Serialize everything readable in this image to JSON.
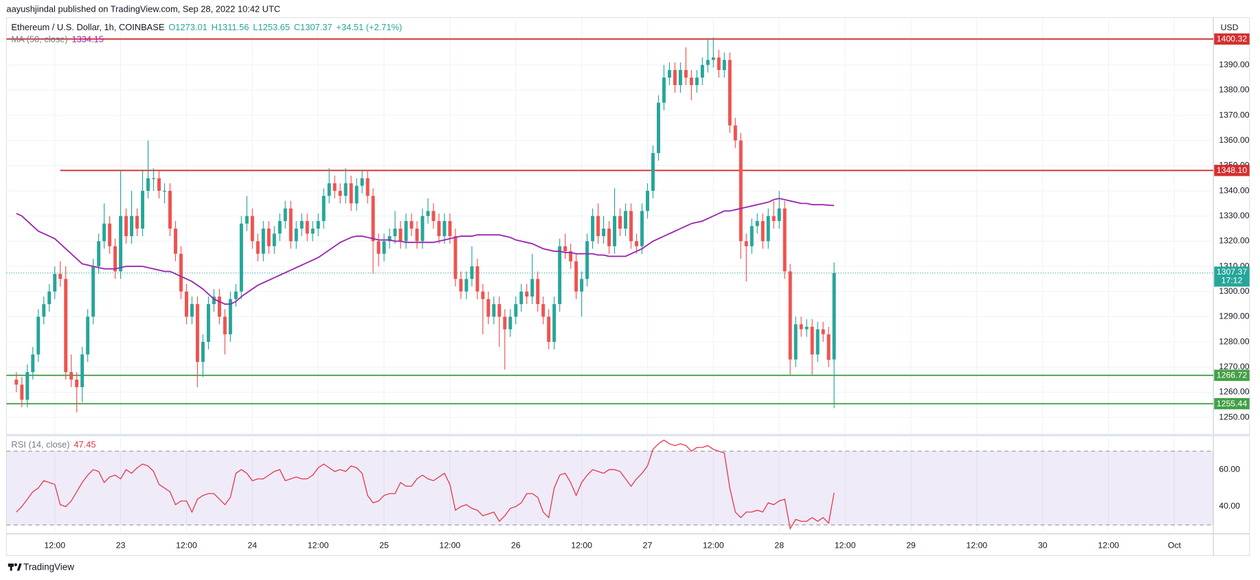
{
  "header": "aayushjindal published on TradingView.com, Sep 28, 2022 10:42 UTC",
  "footer": "TradingView",
  "chart_data": [
    {
      "type": "candlestick",
      "title": "Ethereum / U.S. Dollar, 1h, COINBASE",
      "quote": [
        "O1273.01",
        "H1311.56",
        "L1253.65",
        "C1307.37",
        "+34.51 (+2.71%)"
      ],
      "currency": "USD",
      "countdown": "17:12",
      "up_color": "#26a69a",
      "down_color": "#ef5350",
      "x": [
        5,
        6,
        7,
        8,
        9,
        10,
        11,
        12,
        13,
        14,
        15,
        16,
        17,
        18,
        19,
        20,
        21,
        22,
        23,
        24,
        25,
        26,
        27,
        28,
        29,
        30,
        31,
        32,
        33,
        34,
        35,
        36,
        37,
        38,
        39,
        40,
        41,
        42,
        43,
        44,
        45,
        46,
        47,
        48,
        49,
        50,
        51,
        52,
        53,
        54,
        55,
        56,
        57,
        58,
        59,
        60,
        61,
        62,
        63,
        64,
        65,
        66,
        67,
        68,
        69,
        70,
        71,
        72,
        73,
        74,
        75,
        76,
        77,
        78,
        79,
        80,
        81,
        82,
        83,
        84,
        85,
        86,
        87,
        88,
        89,
        90,
        91,
        92,
        93,
        94,
        95,
        96,
        97,
        98,
        99,
        100,
        101,
        102,
        103,
        104,
        105,
        106,
        107,
        108,
        109,
        110,
        111,
        112,
        113,
        114,
        115,
        116,
        117,
        118,
        119,
        120,
        121,
        122,
        123,
        124,
        125,
        126,
        127,
        128,
        129,
        130,
        131,
        132,
        133,
        134,
        135,
        136,
        137,
        138,
        139,
        140,
        141,
        142,
        143,
        144,
        145,
        146,
        147,
        148,
        149,
        150,
        151,
        152,
        153,
        154
      ],
      "open": [
        1265,
        1263,
        1257,
        1268,
        1275,
        1290,
        1295,
        1300,
        1307,
        1305,
        1268,
        1265,
        1262,
        1275,
        1290,
        1310,
        1320,
        1327,
        1318,
        1308,
        1330,
        1322,
        1330,
        1325,
        1340,
        1345,
        1345,
        1340,
        1340,
        1325,
        1315,
        1300,
        1290,
        1295,
        1272,
        1280,
        1295,
        1298,
        1290,
        1283,
        1297,
        1300,
        1327,
        1330,
        1320,
        1315,
        1325,
        1318,
        1323,
        1328,
        1333,
        1320,
        1325,
        1328,
        1323,
        1325,
        1328,
        1338,
        1343,
        1340,
        1338,
        1343,
        1335,
        1342,
        1345,
        1338,
        1320,
        1315,
        1320,
        1322,
        1325,
        1320,
        1328,
        1325,
        1320,
        1330,
        1332,
        1328,
        1322,
        1328,
        1322,
        1305,
        1300,
        1305,
        1310,
        1300,
        1297,
        1290,
        1295,
        1290,
        1285,
        1290,
        1295,
        1300,
        1298,
        1305,
        1295,
        1290,
        1280,
        1295,
        1318,
        1316,
        1312,
        1300,
        1305,
        1320,
        1330,
        1322,
        1325,
        1318,
        1330,
        1325,
        1332,
        1320,
        1318,
        1332,
        1340,
        1355,
        1375,
        1385,
        1388,
        1382,
        1388,
        1385,
        1382,
        1385,
        1390,
        1392,
        1393,
        1388,
        1392,
        1366,
        1360,
        1320,
        1318,
        1326,
        1328,
        1320,
        1330,
        1328,
        1333,
        1308,
        1273,
        1287,
        1285,
        1286,
        1275,
        1285,
        1283,
        1273.01
      ],
      "high": [
        1268,
        1266,
        1271,
        1278,
        1293,
        1298,
        1303,
        1310,
        1312,
        1310,
        1275,
        1268,
        1278,
        1293,
        1313,
        1323,
        1335,
        1330,
        1321,
        1348,
        1333,
        1340,
        1333,
        1348,
        1360,
        1349,
        1348,
        1343,
        1343,
        1328,
        1318,
        1303,
        1298,
        1298,
        1283,
        1298,
        1301,
        1301,
        1293,
        1300,
        1303,
        1330,
        1338,
        1333,
        1323,
        1328,
        1328,
        1326,
        1331,
        1336,
        1336,
        1328,
        1331,
        1331,
        1328,
        1331,
        1341,
        1349,
        1346,
        1343,
        1349,
        1346,
        1345,
        1348,
        1348,
        1341,
        1323,
        1323,
        1325,
        1332,
        1328,
        1331,
        1331,
        1328,
        1333,
        1337,
        1335,
        1331,
        1331,
        1331,
        1325,
        1308,
        1308,
        1318,
        1313,
        1303,
        1300,
        1298,
        1298,
        1293,
        1293,
        1298,
        1303,
        1303,
        1315,
        1308,
        1298,
        1293,
        1298,
        1321,
        1323,
        1319,
        1315,
        1308,
        1323,
        1333,
        1335,
        1330,
        1328,
        1341,
        1333,
        1335,
        1335,
        1323,
        1335,
        1343,
        1358,
        1378,
        1390,
        1391,
        1391,
        1391,
        1397,
        1388,
        1388,
        1393,
        1400,
        1401,
        1396,
        1395,
        1395,
        1369,
        1363,
        1323,
        1329,
        1331,
        1331,
        1333,
        1336,
        1340,
        1336,
        1311,
        1290,
        1290,
        1289,
        1289,
        1288,
        1288,
        1286,
        1311.56
      ],
      "low": [
        1260,
        1254,
        1254,
        1265,
        1272,
        1287,
        1292,
        1297,
        1302,
        1265,
        1262,
        1252,
        1256,
        1272,
        1287,
        1307,
        1317,
        1315,
        1305,
        1305,
        1319,
        1319,
        1322,
        1322,
        1337,
        1340,
        1337,
        1335,
        1322,
        1312,
        1297,
        1287,
        1287,
        1262,
        1266,
        1277,
        1292,
        1287,
        1275,
        1280,
        1294,
        1297,
        1324,
        1317,
        1312,
        1312,
        1315,
        1315,
        1320,
        1325,
        1317,
        1317,
        1322,
        1320,
        1320,
        1322,
        1325,
        1335,
        1337,
        1335,
        1335,
        1332,
        1332,
        1339,
        1335,
        1307,
        1310,
        1312,
        1317,
        1319,
        1317,
        1317,
        1322,
        1317,
        1317,
        1327,
        1325,
        1319,
        1319,
        1319,
        1302,
        1297,
        1297,
        1302,
        1297,
        1283,
        1287,
        1287,
        1278,
        1269,
        1282,
        1287,
        1292,
        1295,
        1295,
        1292,
        1287,
        1277,
        1277,
        1292,
        1313,
        1309,
        1297,
        1290,
        1302,
        1317,
        1319,
        1319,
        1315,
        1315,
        1322,
        1322,
        1317,
        1315,
        1315,
        1329,
        1337,
        1352,
        1372,
        1382,
        1379,
        1379,
        1382,
        1376,
        1379,
        1382,
        1387,
        1389,
        1385,
        1385,
        1363,
        1357,
        1313,
        1304,
        1315,
        1323,
        1317,
        1317,
        1325,
        1325,
        1305,
        1267,
        1270,
        1282,
        1282,
        1267,
        1272,
        1280,
        1270,
        1253.65
      ],
      "close": [
        1263,
        1257,
        1268,
        1275,
        1290,
        1295,
        1300,
        1307,
        1305,
        1268,
        1265,
        1262,
        1275,
        1290,
        1310,
        1320,
        1327,
        1318,
        1308,
        1330,
        1322,
        1330,
        1325,
        1340,
        1345,
        1345,
        1340,
        1340,
        1325,
        1315,
        1300,
        1290,
        1295,
        1272,
        1280,
        1295,
        1298,
        1290,
        1283,
        1297,
        1300,
        1327,
        1330,
        1320,
        1315,
        1325,
        1318,
        1323,
        1328,
        1333,
        1320,
        1325,
        1328,
        1323,
        1325,
        1328,
        1338,
        1343,
        1340,
        1338,
        1343,
        1335,
        1342,
        1345,
        1338,
        1320,
        1315,
        1320,
        1322,
        1325,
        1320,
        1328,
        1325,
        1320,
        1330,
        1332,
        1328,
        1322,
        1328,
        1322,
        1305,
        1300,
        1305,
        1310,
        1300,
        1297,
        1290,
        1295,
        1290,
        1285,
        1290,
        1295,
        1300,
        1298,
        1305,
        1295,
        1290,
        1280,
        1295,
        1318,
        1316,
        1312,
        1300,
        1305,
        1320,
        1330,
        1322,
        1325,
        1318,
        1330,
        1325,
        1332,
        1320,
        1318,
        1332,
        1340,
        1355,
        1375,
        1385,
        1388,
        1382,
        1388,
        1385,
        1382,
        1385,
        1390,
        1392,
        1393,
        1388,
        1392,
        1366,
        1360,
        1320,
        1318,
        1326,
        1328,
        1320,
        1330,
        1328,
        1333,
        1308,
        1273,
        1287,
        1285,
        1286,
        1275,
        1285,
        1283,
        1272.86,
        1307.37
      ],
      "series": [
        {
          "name": "MA (50, close)",
          "color": "#9c27b0",
          "values": [
            1331,
            1330,
            1328,
            1326,
            1324,
            1323,
            1322,
            1321,
            1319,
            1317,
            1315,
            1313,
            1311,
            1310.5,
            1310,
            1309.5,
            1309,
            1309,
            1309,
            1309.5,
            1310,
            1310,
            1310,
            1310,
            1309.5,
            1309,
            1308.5,
            1308,
            1308,
            1307,
            1306,
            1305,
            1304,
            1302.5,
            1301,
            1299,
            1297,
            1296,
            1295,
            1295,
            1296,
            1298,
            1299.5,
            1301,
            1302.5,
            1303.5,
            1304.5,
            1305.5,
            1306.5,
            1307.5,
            1308.5,
            1309.5,
            1310.5,
            1311.5,
            1312.5,
            1313.5,
            1315,
            1316.5,
            1318,
            1319.5,
            1320.5,
            1321.5,
            1322,
            1322,
            1321.5,
            1321,
            1320.5,
            1320.5,
            1320.5,
            1320,
            1320,
            1319.5,
            1319.5,
            1319.5,
            1319.5,
            1319.5,
            1319.5,
            1320,
            1320.5,
            1321,
            1321.5,
            1322,
            1322,
            1322,
            1322.5,
            1322.5,
            1322.5,
            1322.5,
            1322.5,
            1322,
            1321.5,
            1320.5,
            1320,
            1319.5,
            1319,
            1318,
            1317,
            1316.5,
            1316,
            1316,
            1315.5,
            1315.5,
            1315,
            1315,
            1315,
            1315,
            1314.5,
            1314.5,
            1314,
            1314,
            1314,
            1314,
            1315,
            1316,
            1317,
            1318.5,
            1320,
            1321,
            1322,
            1323,
            1324,
            1325,
            1326,
            1327,
            1327.5,
            1328,
            1329,
            1330,
            1331,
            1332,
            1332,
            1332.5,
            1333,
            1333.5,
            1334,
            1334.5,
            1335,
            1335.5,
            1336.5,
            1337,
            1336.5,
            1336,
            1335.5,
            1335,
            1335,
            1334.5,
            1334.5,
            1334.5,
            1334.3,
            1334.15
          ]
        }
      ],
      "levels": [
        {
          "value": 1400.32,
          "color": "#d32f2f"
        },
        {
          "value": 1348.1,
          "value_label": "1348.10",
          "color": "#d32f2f",
          "x_start": 13
        },
        {
          "value": 1266.72,
          "color": "#43a047"
        },
        {
          "value": 1255.44,
          "color": "#43a047"
        }
      ],
      "xlim": [
        3.2,
        223.1
      ],
      "xticks": [
        {
          "value": 12,
          "label": "12:00"
        },
        {
          "value": 24,
          "label": "23"
        },
        {
          "value": 36,
          "label": "12:00"
        },
        {
          "value": 48,
          "label": "24"
        },
        {
          "value": 60,
          "label": "12:00"
        },
        {
          "value": 72,
          "label": "25"
        },
        {
          "value": 84,
          "label": "12:00"
        },
        {
          "value": 96,
          "label": "26"
        },
        {
          "value": 108,
          "label": "12:00"
        },
        {
          "value": 120,
          "label": "27"
        },
        {
          "value": 132,
          "label": "12:00"
        },
        {
          "value": 144,
          "label": "28"
        },
        {
          "value": 156,
          "label": "12:00"
        },
        {
          "value": 168,
          "label": "29"
        },
        {
          "value": 180,
          "label": "12:00"
        },
        {
          "value": 192,
          "label": "30"
        },
        {
          "value": 204,
          "label": "12:00"
        },
        {
          "value": 216,
          "label": "Oct"
        }
      ],
      "ylim": [
        1243.6,
        1408.8
      ],
      "yticks": [
        {
          "value": 1250,
          "label": "1250.00"
        },
        {
          "value": 1260,
          "label": "1260.00"
        },
        {
          "value": 1270,
          "label": "1270.00"
        },
        {
          "value": 1280,
          "label": "1280.00"
        },
        {
          "value": 1290,
          "label": "1290.00"
        },
        {
          "value": 1300,
          "label": "1300.00"
        },
        {
          "value": 1310,
          "label": "1310.00"
        },
        {
          "value": 1320,
          "label": "1320.00"
        },
        {
          "value": 1330,
          "label": "1330.00"
        },
        {
          "value": 1340,
          "label": "1340.00"
        },
        {
          "value": 1350,
          "label": "1350.00"
        },
        {
          "value": 1360,
          "label": "1360.00"
        },
        {
          "value": 1370,
          "label": "1370.00"
        },
        {
          "value": 1380,
          "label": "1380.00"
        },
        {
          "value": 1390,
          "label": "1390.00"
        }
      ],
      "grid": true
    },
    {
      "type": "line",
      "series": [
        {
          "name": "RSI (14, close)",
          "color": "#e5334a",
          "values": [
            37,
            40,
            44,
            48,
            50,
            54,
            53,
            52,
            41,
            40,
            43,
            48,
            53,
            57,
            60,
            59,
            53,
            56,
            57,
            55,
            60,
            58,
            61,
            63,
            62,
            59,
            52,
            50,
            48,
            41,
            43,
            43,
            37,
            44,
            46,
            47,
            47,
            44,
            41,
            45,
            58,
            60,
            58,
            54,
            55,
            55,
            57,
            59,
            60,
            54,
            55,
            56,
            55,
            55,
            57,
            61,
            63,
            61,
            59,
            60,
            59,
            62,
            61,
            58,
            46,
            42,
            43,
            46,
            47,
            47,
            53,
            51,
            51,
            55,
            57,
            55,
            54,
            56,
            58,
            52,
            38,
            40,
            41,
            39,
            38,
            35,
            36,
            37,
            32,
            35,
            39,
            40,
            42,
            47,
            47,
            45,
            37,
            34,
            50,
            57,
            58,
            53,
            46,
            53,
            57,
            60,
            59,
            58,
            60,
            60,
            59,
            55,
            51,
            55,
            58,
            62,
            71,
            74,
            76,
            74,
            73,
            74,
            73,
            70,
            72,
            72,
            73,
            71,
            70,
            69,
            50,
            37,
            34,
            37,
            37,
            38,
            37,
            42,
            41,
            43,
            44,
            28,
            33,
            32,
            32,
            34,
            32,
            34,
            31,
            47.45
          ]
        }
      ],
      "band": [
        30,
        70
      ],
      "band_color": "#7e57c2",
      "ylim": [
        25.2,
        77.4
      ],
      "yticks": [
        {
          "value": 40,
          "label": "40.00"
        },
        {
          "value": 60,
          "label": "60.00"
        }
      ]
    }
  ]
}
